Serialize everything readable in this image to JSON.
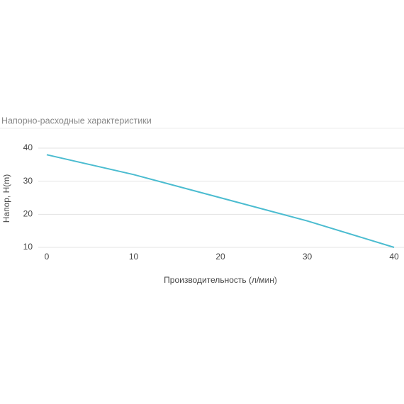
{
  "chart_data": {
    "type": "line",
    "title": "Напорно-расходные характеристики",
    "x_label": "Производительность (л/мин)",
    "y_label": "Напор, H(m)",
    "x": [
      0,
      10,
      20,
      30,
      40
    ],
    "series": [
      {
        "name": "Напор",
        "color": "#4bbcd0",
        "values": [
          38,
          32,
          25,
          18,
          10
        ]
      }
    ],
    "xlim": [
      0,
      40
    ],
    "xticks": [
      0,
      10,
      20,
      30,
      40
    ],
    "ylim": [
      10,
      40
    ],
    "yticks": [
      10,
      20,
      30,
      40
    ],
    "grid": true
  }
}
